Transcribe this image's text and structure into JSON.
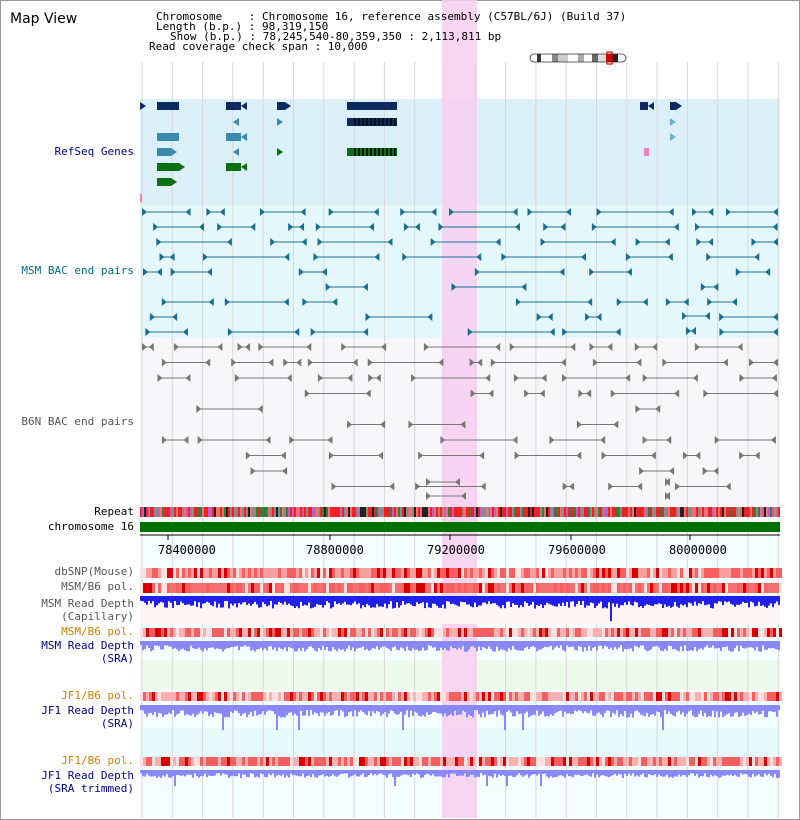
{
  "header": {
    "title": "Map View",
    "chromosome_label": "Chromosome    : Chromosome 16, reference assembly (C57BL/6J) (Build 37)",
    "length_label": "Length (b.p.) : 98,319,150",
    "show_label": "Show (b.p.) : 78,245,540-80,359,350 : 2,113,811 bp",
    "coverage_label": "Read coverage check span : 10,000"
  },
  "tracks": {
    "refseq": "RefSeq Genes",
    "msm_bac": "MSM BAC end pairs",
    "b6n_bac": "B6N BAC end pairs",
    "repeat": "Repeat",
    "chromosome": "chromosome 16",
    "dbsnp": "dbSNP(Mouse)",
    "msm_b6_pol": "MSM/B6 pol.",
    "msm_read_depth_cap_1": "MSM Read Depth",
    "msm_read_depth_cap_2": "(Capillary)",
    "msm_b6_pol_2": "MSM/B6 pol.",
    "msm_read_depth_sra_1": "MSM Read Depth",
    "msm_read_depth_sra_2": "(SRA)",
    "jf1_b6_pol": "JF1/B6 pol.",
    "jf1_read_depth_1": "JF1 Read Depth",
    "jf1_read_depth_2": "(SRA)",
    "jf1_b6_pol_2": "JF1/B6 pol.",
    "jf1_trim_1": "JF1 Read Depth",
    "jf1_trim_2": "(SRA trimmed)"
  },
  "axis": {
    "ticks": [
      "78400000",
      "78800000",
      "79200000",
      "79600000",
      "80000000"
    ]
  },
  "colors": {
    "refseq_bg": "#dcf0fa",
    "msm_bg": "#e4f8fc",
    "b6n_bg": "#f7f7fa",
    "highlight": "#f7cff0",
    "chromosome_green": "#007000",
    "depth_blue": "#2020e8",
    "depth_light_blue": "#8888ff",
    "pol_red": "#ee3030"
  }
}
